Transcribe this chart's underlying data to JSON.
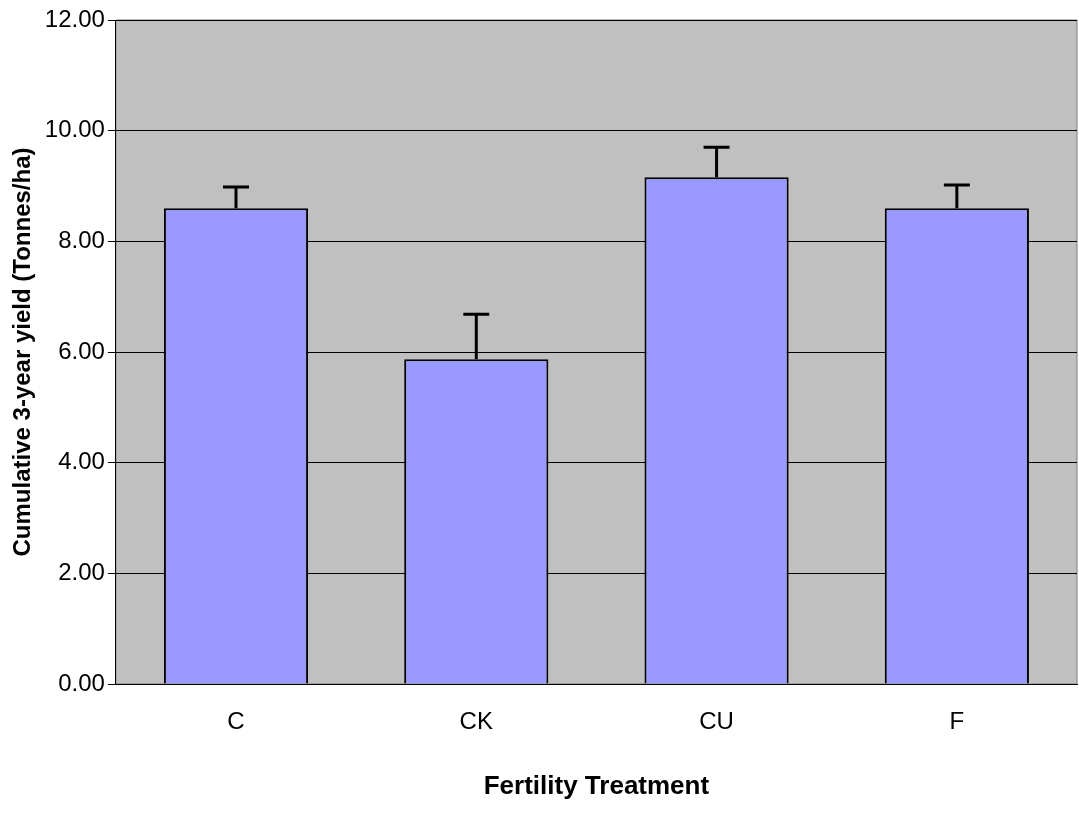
{
  "chart_data": {
    "type": "bar",
    "xlabel": "Fertility Treatment",
    "ylabel": "Cumulative 3-year yield (Tonnes/ha)",
    "categories": [
      "C",
      "CK",
      "CU",
      "F"
    ],
    "values": [
      8.6,
      5.87,
      9.16,
      8.6
    ],
    "errors": [
      [
        8.6,
        8.98
      ],
      [
        5.87,
        6.68
      ],
      [
        9.16,
        9.7
      ],
      [
        8.6,
        9.02
      ]
    ],
    "color": "#9999ff",
    "ylim": [
      0,
      12
    ],
    "yticks": [
      {
        "value": 0,
        "label": "0.00"
      },
      {
        "value": 2,
        "label": "2.00"
      },
      {
        "value": 4,
        "label": "4.00"
      },
      {
        "value": 6,
        "label": "6.00"
      },
      {
        "value": 8,
        "label": "8.00"
      },
      {
        "value": 10,
        "label": "10.00"
      },
      {
        "value": 12,
        "label": "12.00"
      }
    ],
    "grid": "y",
    "legend": false
  }
}
